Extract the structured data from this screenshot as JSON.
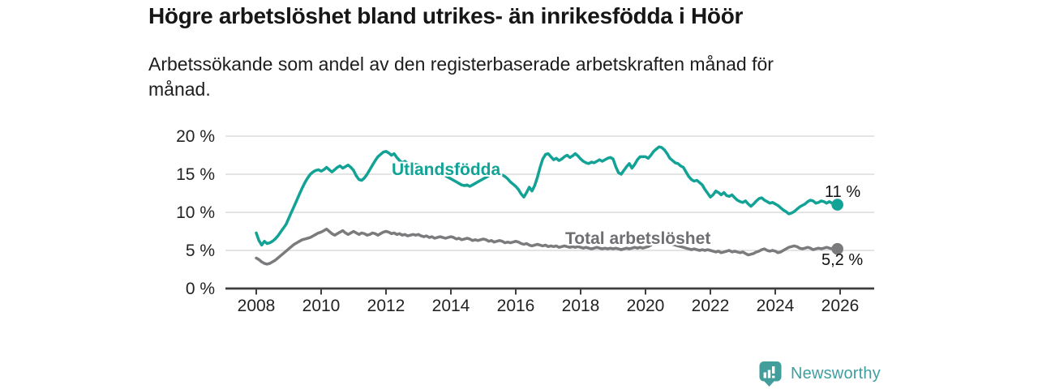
{
  "chart_data": {
    "type": "line",
    "title": "Högre arbetslöshet bland utrikes- än inrikesfödda i Höör",
    "subtitle": "Arbetssökande som andel av den registerbaserade arbetskraften månad för\nmånad.",
    "unit": "%",
    "x_frequency": "monthly",
    "x_start_year": 2008,
    "x_start": "2008-01",
    "x_end": "2025-12",
    "ylim": [
      0,
      20
    ],
    "grid": true,
    "legend_position": "inline-labels",
    "ytick_values": [
      0,
      5,
      10,
      15,
      20
    ],
    "ytick_labels": [
      "0 %",
      "5 %",
      "10 %",
      "15 %",
      "20 %"
    ],
    "xtick_values": [
      2008,
      2010,
      2012,
      2014,
      2016,
      2018,
      2020,
      2022,
      2024,
      2026
    ],
    "xtick_labels": [
      "2008",
      "2010",
      "2012",
      "2014",
      "2016",
      "2018",
      "2020",
      "2022",
      "2024",
      "2026"
    ],
    "series": [
      {
        "name": "Utlandsfödda",
        "color": "#12a296",
        "end_label": "11 %",
        "end_value": 11,
        "values": [
          7.3,
          6.3,
          5.7,
          6.2,
          5.9,
          6.0,
          6.2,
          6.5,
          6.9,
          7.4,
          7.9,
          8.4,
          9.2,
          10.0,
          10.8,
          11.6,
          12.4,
          13.2,
          13.9,
          14.5,
          15.0,
          15.3,
          15.5,
          15.6,
          15.4,
          15.6,
          15.9,
          15.6,
          15.3,
          15.6,
          15.9,
          16.1,
          15.8,
          16.0,
          16.2,
          15.9,
          15.5,
          14.8,
          14.3,
          14.2,
          14.5,
          15.0,
          15.6,
          16.2,
          16.8,
          17.3,
          17.6,
          17.9,
          18.0,
          17.8,
          17.5,
          17.7,
          17.2,
          16.8,
          16.5,
          16.7,
          16.4,
          16.5,
          16.2,
          16.3,
          16.2,
          16.0,
          15.8,
          15.9,
          15.6,
          15.4,
          15.5,
          15.2,
          15.0,
          15.1,
          14.8,
          14.6,
          14.4,
          14.2,
          14.0,
          13.8,
          13.6,
          13.5,
          13.6,
          13.4,
          13.6,
          13.8,
          14.0,
          14.2,
          14.4,
          14.6,
          14.8,
          15.0,
          14.9,
          15.1,
          15.0,
          14.9,
          14.7,
          14.4,
          14.0,
          13.7,
          13.4,
          13.0,
          12.4,
          12.0,
          12.6,
          13.3,
          12.8,
          13.5,
          14.6,
          15.9,
          17.0,
          17.6,
          17.7,
          17.3,
          16.9,
          17.1,
          16.8,
          17.0,
          17.3,
          17.5,
          17.2,
          17.4,
          17.7,
          17.4,
          17.0,
          16.7,
          16.5,
          16.4,
          16.6,
          16.5,
          16.7,
          16.9,
          16.7,
          16.9,
          17.1,
          17.2,
          17.0,
          16.0,
          15.2,
          15.0,
          15.5,
          16.0,
          16.4,
          15.8,
          16.3,
          16.9,
          17.3,
          17.3,
          17.3,
          17.1,
          17.5,
          18.0,
          18.3,
          18.6,
          18.5,
          18.2,
          17.7,
          17.1,
          16.8,
          16.5,
          16.4,
          16.1,
          15.9,
          15.3,
          14.7,
          14.3,
          14.1,
          14.2,
          13.9,
          13.6,
          13.0,
          12.5,
          12.0,
          12.3,
          12.8,
          12.6,
          12.3,
          12.6,
          12.2,
          12.1,
          12.3,
          11.9,
          11.6,
          11.4,
          11.3,
          11.5,
          11.1,
          10.8,
          11.1,
          11.5,
          11.8,
          11.9,
          11.6,
          11.4,
          11.2,
          11.3,
          11.1,
          10.9,
          10.6,
          10.3,
          10.1,
          9.8,
          9.9,
          10.1,
          10.4,
          10.7,
          10.9,
          11.1,
          11.4,
          11.6,
          11.5,
          11.2,
          11.3,
          11.5,
          11.4,
          11.2,
          11.4,
          11.2,
          11.0,
          11.0
        ]
      },
      {
        "name": "Total arbetslöshet",
        "color": "#7b7b7e",
        "end_label": "5,2 %",
        "end_value": 5.2,
        "values": [
          4.0,
          3.8,
          3.5,
          3.3,
          3.2,
          3.3,
          3.5,
          3.7,
          4.0,
          4.3,
          4.6,
          4.9,
          5.2,
          5.5,
          5.8,
          6.0,
          6.2,
          6.4,
          6.5,
          6.6,
          6.7,
          6.9,
          7.1,
          7.3,
          7.4,
          7.6,
          7.8,
          7.5,
          7.2,
          7.0,
          7.2,
          7.4,
          7.6,
          7.3,
          7.1,
          7.3,
          7.5,
          7.3,
          7.1,
          7.3,
          7.2,
          7.0,
          7.1,
          7.3,
          7.2,
          7.0,
          7.2,
          7.4,
          7.5,
          7.4,
          7.2,
          7.3,
          7.1,
          7.2,
          7.0,
          7.1,
          6.9,
          7.0,
          7.1,
          7.0,
          7.1,
          6.9,
          6.8,
          6.9,
          6.7,
          6.8,
          6.6,
          6.7,
          6.8,
          6.7,
          6.6,
          6.7,
          6.8,
          6.7,
          6.5,
          6.6,
          6.4,
          6.5,
          6.6,
          6.5,
          6.3,
          6.4,
          6.3,
          6.4,
          6.5,
          6.4,
          6.2,
          6.3,
          6.1,
          6.2,
          6.3,
          6.2,
          6.0,
          6.1,
          6.0,
          6.1,
          6.2,
          6.1,
          5.9,
          5.8,
          5.9,
          5.7,
          5.6,
          5.7,
          5.8,
          5.7,
          5.6,
          5.7,
          5.5,
          5.6,
          5.5,
          5.6,
          5.4,
          5.5,
          5.6,
          5.5,
          5.4,
          5.5,
          5.4,
          5.5,
          5.4,
          5.3,
          5.4,
          5.3,
          5.2,
          5.3,
          5.4,
          5.3,
          5.2,
          5.3,
          5.2,
          5.3,
          5.2,
          5.3,
          5.2,
          5.1,
          5.2,
          5.3,
          5.2,
          5.3,
          5.4,
          5.3,
          5.4,
          5.3,
          5.4,
          5.5,
          5.7,
          6.0,
          6.2,
          6.3,
          6.2,
          6.1,
          6.0,
          5.9,
          5.8,
          5.7,
          5.6,
          5.5,
          5.4,
          5.3,
          5.2,
          5.1,
          5.2,
          5.1,
          5.0,
          5.1,
          5.0,
          5.1,
          5.0,
          4.9,
          4.8,
          4.9,
          4.7,
          4.8,
          4.9,
          5.0,
          4.8,
          4.9,
          4.8,
          4.7,
          4.8,
          4.6,
          4.4,
          4.5,
          4.6,
          4.8,
          4.9,
          5.1,
          5.2,
          5.0,
          4.9,
          5.0,
          4.9,
          4.7,
          4.8,
          5.0,
          5.2,
          5.4,
          5.5,
          5.6,
          5.5,
          5.3,
          5.2,
          5.3,
          5.4,
          5.3,
          5.1,
          5.2,
          5.3,
          5.2,
          5.3,
          5.4,
          5.3,
          5.2,
          5.1,
          5.2
        ]
      }
    ],
    "colors": {
      "axis_line": "#3e3e3e",
      "gridline": "#dbdbdb",
      "axis_text": "#232323"
    }
  },
  "footer": {
    "brand": "Newsworthy",
    "brand_color": "#3f9fa0"
  }
}
